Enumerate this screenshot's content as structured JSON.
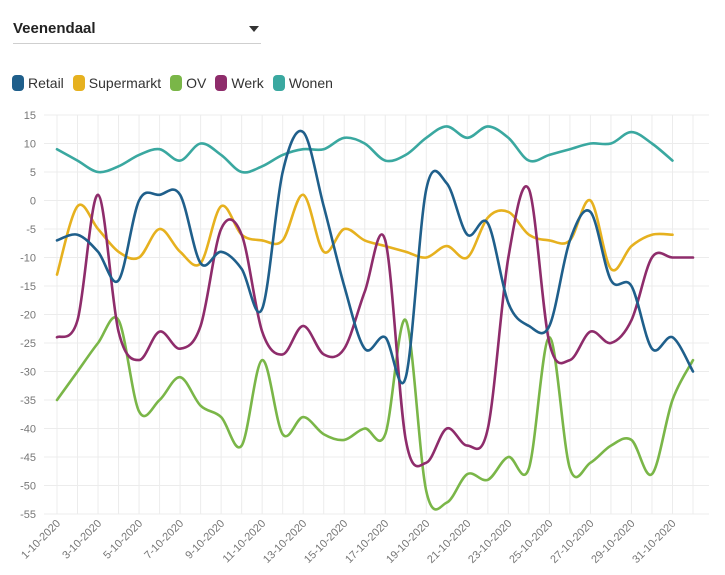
{
  "filter": {
    "selected": "Veenendaal"
  },
  "colors": {
    "Retail": "#1f5f8b",
    "Supermarkt": "#e6b11f",
    "OV": "#7ab648",
    "Werk": "#8e2c6b",
    "Wonen": "#3aa8a0",
    "grid": "#ececec"
  },
  "chart_data": {
    "type": "line",
    "title": "",
    "xlabel": "",
    "ylabel": "",
    "ylim": [
      -55,
      15
    ],
    "yticks": [
      15,
      10,
      5,
      0,
      -5,
      -10,
      -15,
      -20,
      -25,
      -30,
      -35,
      -40,
      -45,
      -50,
      -55
    ],
    "x": [
      "1-10-2020",
      "2-10-2020",
      "3-10-2020",
      "4-10-2020",
      "5-10-2020",
      "6-10-2020",
      "7-10-2020",
      "8-10-2020",
      "9-10-2020",
      "10-10-2020",
      "11-10-2020",
      "12-10-2020",
      "13-10-2020",
      "14-10-2020",
      "15-10-2020",
      "16-10-2020",
      "17-10-2020",
      "18-10-2020",
      "19-10-2020",
      "20-10-2020",
      "21-10-2020",
      "22-10-2020",
      "23-10-2020",
      "24-10-2020",
      "25-10-2020",
      "26-10-2020",
      "27-10-2020",
      "28-10-2020",
      "29-10-2020",
      "30-10-2020",
      "31-10-2020",
      "1-11-2020"
    ],
    "xtick_labels": [
      "1-10-2020",
      "3-10-2020",
      "5-10-2020",
      "7-10-2020",
      "9-10-2020",
      "11-10-2020",
      "13-10-2020",
      "15-10-2020",
      "17-10-2020",
      "19-10-2020",
      "21-10-2020",
      "23-10-2020",
      "25-10-2020",
      "27-10-2020",
      "29-10-2020",
      "31-10-2020"
    ],
    "grid": true,
    "legend": "top-left",
    "series": [
      {
        "name": "Retail",
        "values": [
          -7,
          -6,
          -9,
          -14,
          0,
          1,
          1,
          -11,
          -9,
          -12,
          -19,
          5,
          12,
          -1,
          -15,
          -26,
          -24,
          -31,
          2,
          3,
          -6,
          -4,
          -18,
          -22,
          -22,
          -7,
          -2,
          -14,
          -15,
          -26,
          -24,
          -30
        ]
      },
      {
        "name": "Supermarkt",
        "values": [
          -13,
          -1,
          -5,
          -9,
          -10,
          -5,
          -9,
          -11,
          -1,
          -6,
          -7,
          -7,
          1,
          -9,
          -5,
          -7,
          -8,
          -9,
          -10,
          -8,
          -10,
          -3,
          -2,
          -6,
          -7,
          -7,
          0,
          -12,
          -8,
          -6,
          -6,
          null
        ]
      },
      {
        "name": "OV",
        "values": [
          -35,
          -30,
          -25,
          -21,
          -37,
          -35,
          -31,
          -36,
          -38,
          -43,
          -28,
          -41,
          -38,
          -41,
          -42,
          -40,
          -41,
          -21,
          -51,
          -53,
          -48,
          -49,
          -45,
          -47,
          -24,
          -47,
          -46,
          -43,
          -42,
          -48,
          -35,
          -28
        ]
      },
      {
        "name": "Werk",
        "values": [
          -24,
          -21,
          1,
          -23,
          -28,
          -23,
          -26,
          -22,
          -5,
          -6,
          -23,
          -27,
          -22,
          -27,
          -26,
          -16,
          -7,
          -42,
          -46,
          -40,
          -43,
          -40,
          -10,
          2,
          -25,
          -28,
          -23,
          -25,
          -21,
          -10,
          -10,
          -10
        ]
      },
      {
        "name": "Wonen",
        "values": [
          9,
          7,
          5,
          6,
          8,
          9,
          7,
          10,
          8,
          5,
          6,
          8,
          9,
          9,
          11,
          10,
          7,
          8,
          11,
          13,
          11,
          13,
          11,
          7,
          8,
          9,
          10,
          10,
          12,
          10,
          7,
          null
        ]
      }
    ]
  }
}
